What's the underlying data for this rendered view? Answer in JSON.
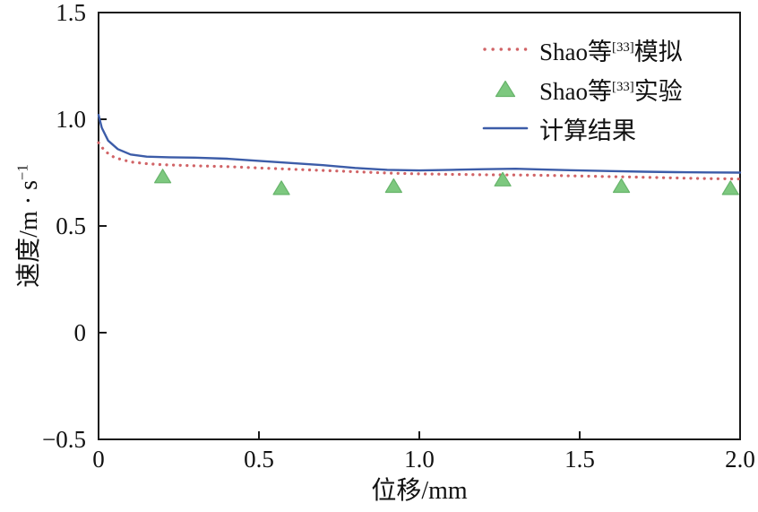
{
  "figure": {
    "background": "#ffffff"
  },
  "chart_data": {
    "type": "line",
    "title": "",
    "xlabel": "位移/mm",
    "ylabel": "速度/m · s⁻¹",
    "ylabel_rich": {
      "base": "速度/m · s",
      "sup": "−1"
    },
    "xlim": [
      0,
      2.0
    ],
    "ylim": [
      -0.5,
      1.5
    ],
    "xticks": [
      0,
      0.5,
      1.0,
      1.5,
      2.0
    ],
    "xtick_labels": [
      "0",
      "0.5",
      "1.0",
      "1.5",
      "2.0"
    ],
    "yticks": [
      1.5,
      1.0,
      0.5,
      0,
      -0.5
    ],
    "ytick_labels": [
      "1.5",
      "1.0",
      "0.5",
      "0",
      "−0.5"
    ],
    "grid": false,
    "legend_position": "upper-right",
    "frame": true,
    "series": [
      {
        "name": "Shao等[33]模拟",
        "type": "line",
        "style": "dotted",
        "color": "#d16467",
        "x": [
          0,
          0.02,
          0.05,
          0.1,
          0.15,
          0.2,
          0.3,
          0.4,
          0.5,
          0.6,
          0.7,
          0.8,
          0.9,
          1.0,
          1.1,
          1.2,
          1.3,
          1.4,
          1.5,
          1.6,
          1.7,
          1.8,
          1.9,
          2.0
        ],
        "y": [
          0.89,
          0.85,
          0.82,
          0.8,
          0.792,
          0.787,
          0.782,
          0.778,
          0.772,
          0.766,
          0.76,
          0.754,
          0.748,
          0.744,
          0.742,
          0.74,
          0.739,
          0.737,
          0.734,
          0.731,
          0.728,
          0.725,
          0.722,
          0.72
        ]
      },
      {
        "name": "Shao等[33]实验",
        "type": "scatter",
        "marker": "triangle-up",
        "color": "#7dc87f",
        "edge_color": "#67b46b",
        "x": [
          0.2,
          0.57,
          0.92,
          1.26,
          1.63,
          1.97
        ],
        "y": [
          0.73,
          0.675,
          0.685,
          0.715,
          0.685,
          0.675
        ]
      },
      {
        "name": "计算结果",
        "type": "line",
        "style": "solid",
        "color": "#3c5ca8",
        "x": [
          0,
          0.01,
          0.03,
          0.06,
          0.1,
          0.15,
          0.22,
          0.3,
          0.4,
          0.5,
          0.6,
          0.7,
          0.8,
          0.9,
          1.0,
          1.1,
          1.2,
          1.3,
          1.4,
          1.5,
          1.6,
          1.7,
          1.8,
          1.9,
          2.0
        ],
        "y": [
          1.02,
          0.96,
          0.9,
          0.86,
          0.835,
          0.825,
          0.822,
          0.82,
          0.815,
          0.805,
          0.795,
          0.785,
          0.772,
          0.763,
          0.76,
          0.763,
          0.766,
          0.768,
          0.764,
          0.76,
          0.757,
          0.754,
          0.752,
          0.751,
          0.75
        ]
      }
    ]
  },
  "legend": {
    "items": [
      {
        "prefix": "Shao等",
        "sup": "[33]",
        "suffix": "模拟"
      },
      {
        "prefix": "Shao等",
        "sup": "[33]",
        "suffix": "实验"
      },
      {
        "prefix": "计算结果",
        "sup": "",
        "suffix": ""
      }
    ]
  }
}
